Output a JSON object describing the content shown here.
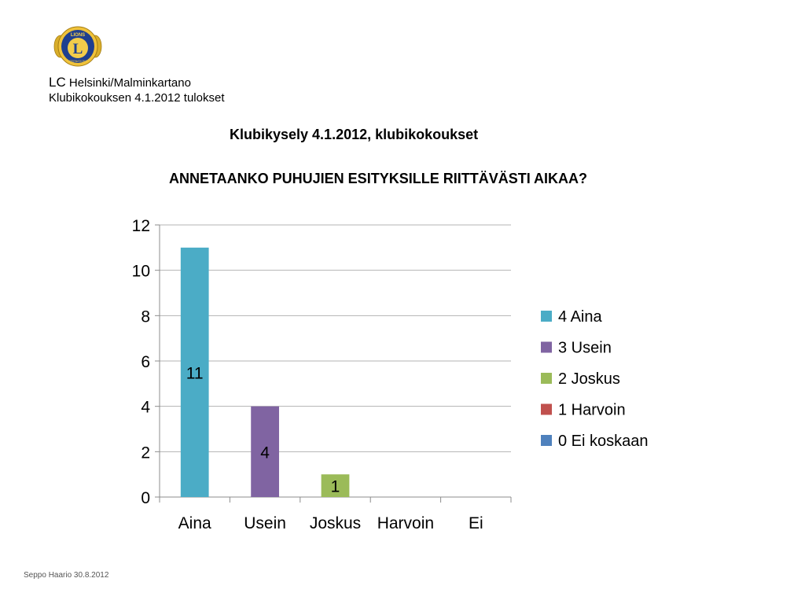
{
  "header": {
    "org_prefix": "LC",
    "org_name": " Helsinki/Malminkartano",
    "meeting": "Klubikokouksen 4.1.2012 tulokset"
  },
  "survey_title": "Klubikysely 4.1.2012, klubikokoukset",
  "question": "ANNETAANKO PUHUJIEN ESITYKSILLE RIITTÄVÄSTI AIKAA?",
  "footer": "Seppo Haario 30.8.2012",
  "logo": {
    "icon": "lions-club-emblem-icon",
    "letter": "L",
    "ring_text": "LIONS",
    "bottom_text": "INTERNATIONAL"
  },
  "chart_data": {
    "type": "bar",
    "categories": [
      "Aina",
      "Usein",
      "Joskus",
      "Harvoin",
      "Ei"
    ],
    "values": [
      11,
      4,
      1,
      0,
      0
    ],
    "data_labels": [
      "11",
      "4",
      "1",
      "",
      ""
    ],
    "colors": [
      "#4bacc6",
      "#8064a2",
      "#9bbb59",
      "#c0504d",
      "#4f81bd"
    ],
    "ylim": [
      0,
      12
    ],
    "yticks": [
      0,
      2,
      4,
      6,
      8,
      10,
      12
    ],
    "grid": true,
    "legend": {
      "position": "right",
      "entries": [
        "4 Aina",
        "3 Usein",
        "2 Joskus",
        "1 Harvoin",
        "0 Ei koskaan"
      ]
    }
  }
}
